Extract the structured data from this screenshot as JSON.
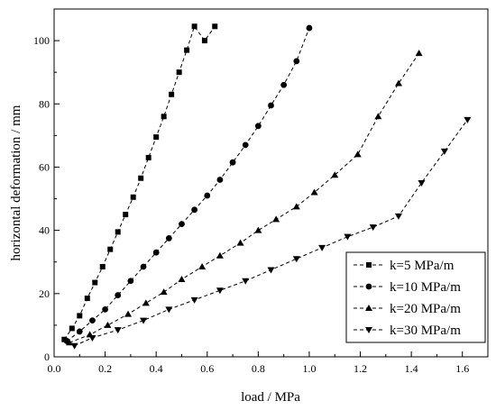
{
  "chart_data": {
    "type": "line",
    "xlabel": "load / MPa",
    "ylabel": "horizontal deformation / mm",
    "xlim": [
      0.0,
      1.7
    ],
    "ylim": [
      0,
      110
    ],
    "xticks": [
      "0.0",
      "0.2",
      "0.4",
      "0.6",
      "0.8",
      "1.0",
      "1.2",
      "1.4",
      "1.6"
    ],
    "yticks": [
      "0",
      "20",
      "40",
      "60",
      "80",
      "100"
    ],
    "legend_position": "bottom-right",
    "line_style": "dashed",
    "color": "#000000",
    "series": [
      {
        "name": "k=5 MPa/m",
        "marker": "square",
        "x": [
          0.04,
          0.07,
          0.1,
          0.13,
          0.16,
          0.19,
          0.22,
          0.25,
          0.28,
          0.31,
          0.34,
          0.37,
          0.4,
          0.43,
          0.46,
          0.49,
          0.52,
          0.55,
          0.59,
          0.63
        ],
        "y": [
          5.5,
          9.0,
          13.0,
          18.5,
          23.5,
          28.5,
          34.0,
          39.5,
          45.0,
          50.5,
          56.5,
          63.0,
          69.5,
          76.0,
          83.0,
          90.0,
          97.0,
          104.5,
          100.0,
          104.5
        ]
      },
      {
        "name": "k=10 MPa/m",
        "marker": "circle",
        "x": [
          0.05,
          0.1,
          0.15,
          0.2,
          0.25,
          0.3,
          0.35,
          0.4,
          0.45,
          0.5,
          0.55,
          0.6,
          0.65,
          0.7,
          0.75,
          0.8,
          0.85,
          0.9,
          0.95,
          1.0
        ],
        "y": [
          5.0,
          8.0,
          11.5,
          15.0,
          19.5,
          24.0,
          28.5,
          33.0,
          37.5,
          42.0,
          46.5,
          51.0,
          56.0,
          61.5,
          67.0,
          73.0,
          79.5,
          86.0,
          93.5,
          104.0
        ]
      },
      {
        "name": "k=20 MPa/m",
        "marker": "triangle-up",
        "x": [
          0.06,
          0.14,
          0.21,
          0.29,
          0.36,
          0.43,
          0.5,
          0.58,
          0.65,
          0.73,
          0.8,
          0.87,
          0.95,
          1.02,
          1.1,
          1.19,
          1.27,
          1.35,
          1.43
        ],
        "y": [
          4.5,
          7.0,
          10.0,
          13.5,
          17.0,
          20.5,
          24.5,
          28.5,
          32.0,
          36.0,
          40.0,
          43.5,
          47.5,
          52.0,
          57.5,
          64.0,
          76.0,
          86.5,
          96.0
        ]
      },
      {
        "name": "k=30 MPa/m",
        "marker": "triangle-down",
        "x": [
          0.08,
          0.15,
          0.25,
          0.35,
          0.45,
          0.55,
          0.65,
          0.75,
          0.85,
          0.95,
          1.05,
          1.15,
          1.25,
          1.35,
          1.44,
          1.53,
          1.62
        ],
        "y": [
          3.5,
          6.0,
          8.5,
          11.5,
          15.0,
          18.0,
          21.0,
          24.0,
          27.5,
          31.0,
          34.5,
          38.0,
          41.0,
          44.5,
          55.0,
          65.0,
          75.0
        ]
      }
    ]
  }
}
